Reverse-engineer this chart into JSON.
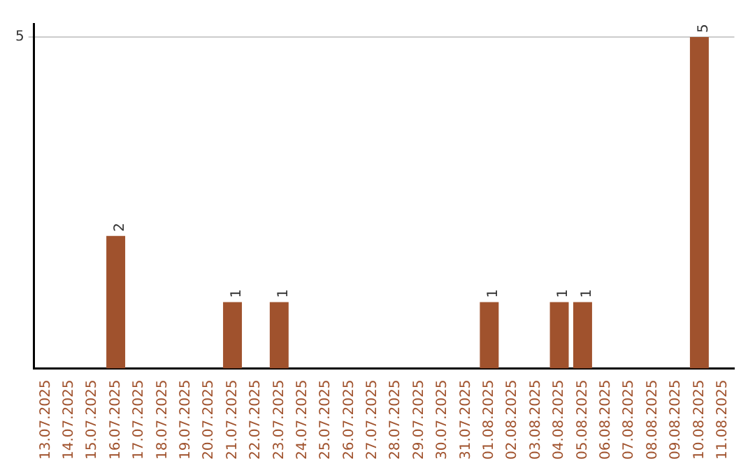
{
  "chart_data": {
    "type": "bar",
    "categories": [
      "13.07.2025",
      "14.07.2025",
      "15.07.2025",
      "16.07.2025",
      "17.07.2025",
      "18.07.2025",
      "19.07.2025",
      "20.07.2025",
      "21.07.2025",
      "22.07.2025",
      "23.07.2025",
      "24.07.2025",
      "25.07.2025",
      "26.07.2025",
      "27.07.2025",
      "28.07.2025",
      "29.07.2025",
      "30.07.2025",
      "31.07.2025",
      "01.08.2025",
      "02.08.2025",
      "03.08.2025",
      "04.08.2025",
      "05.08.2025",
      "06.08.2025",
      "07.08.2025",
      "08.08.2025",
      "09.08.2025",
      "10.08.2025",
      "11.08.2025"
    ],
    "values": [
      0,
      0,
      0,
      2,
      0,
      0,
      0,
      0,
      1,
      0,
      1,
      0,
      0,
      0,
      0,
      0,
      0,
      0,
      0,
      1,
      0,
      0,
      1,
      1,
      0,
      0,
      0,
      0,
      5,
      0
    ],
    "value_labels": [
      null,
      null,
      null,
      "2",
      null,
      null,
      null,
      null,
      "1",
      null,
      "1",
      null,
      null,
      null,
      null,
      null,
      null,
      null,
      null,
      "1",
      null,
      null,
      "1",
      "1",
      null,
      null,
      null,
      null,
      "5",
      null
    ],
    "color": "#a0522d",
    "ylim": [
      0,
      5.2
    ],
    "yticks": [
      5
    ],
    "grid": "y",
    "legend": false
  }
}
